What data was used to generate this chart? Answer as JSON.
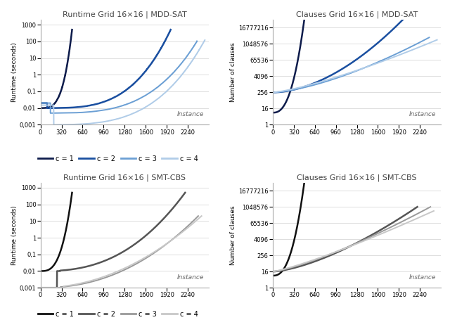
{
  "titles_normal": [
    "Runtime ",
    "Clauses ",
    "Runtime ",
    "Clauses "
  ],
  "titles_bold": [
    "Grid 16×16 | MDD-SAT",
    "Grid 16×16 | MDD-SAT",
    "Grid 16×16 | SMT-CBS",
    "Grid 16×16 | SMT-CBS"
  ],
  "ylabels": [
    "Runtime (seconds)",
    "Number of clauses",
    "Runtime (seconds)",
    "Number of clauses"
  ],
  "xlim": [
    0,
    2560
  ],
  "xticks": [
    0,
    320,
    640,
    960,
    1280,
    1600,
    1920,
    2240
  ],
  "mdd_colors": [
    "#0d1b4b",
    "#1a4fa0",
    "#6b9fd4",
    "#b0cce8"
  ],
  "smt_colors": [
    "#111111",
    "#555555",
    "#999999",
    "#c8c8c8"
  ],
  "legend_labels": [
    "c = 1",
    "c = 2",
    "c = 3",
    "c = 4"
  ],
  "instance_label": "Instance",
  "background_color": "#ffffff",
  "grid_color": "#d0d0d0",
  "runtime_yticks": [
    0.001,
    0.01,
    0.1,
    1,
    10,
    100,
    1000
  ],
  "runtime_ylabels": [
    "0,001",
    "0,01",
    "0,1",
    "1",
    "10",
    "100",
    "1000"
  ],
  "runtime_ylim": [
    0.001,
    2000
  ],
  "clauses_yticks": [
    1,
    16,
    256,
    4096,
    65536,
    1048576,
    16777216
  ],
  "clauses_ylabels": [
    "1",
    "16",
    "256",
    "4096",
    "65536",
    "1048576",
    "16777216"
  ],
  "clauses_ylim": [
    1,
    67108864
  ]
}
